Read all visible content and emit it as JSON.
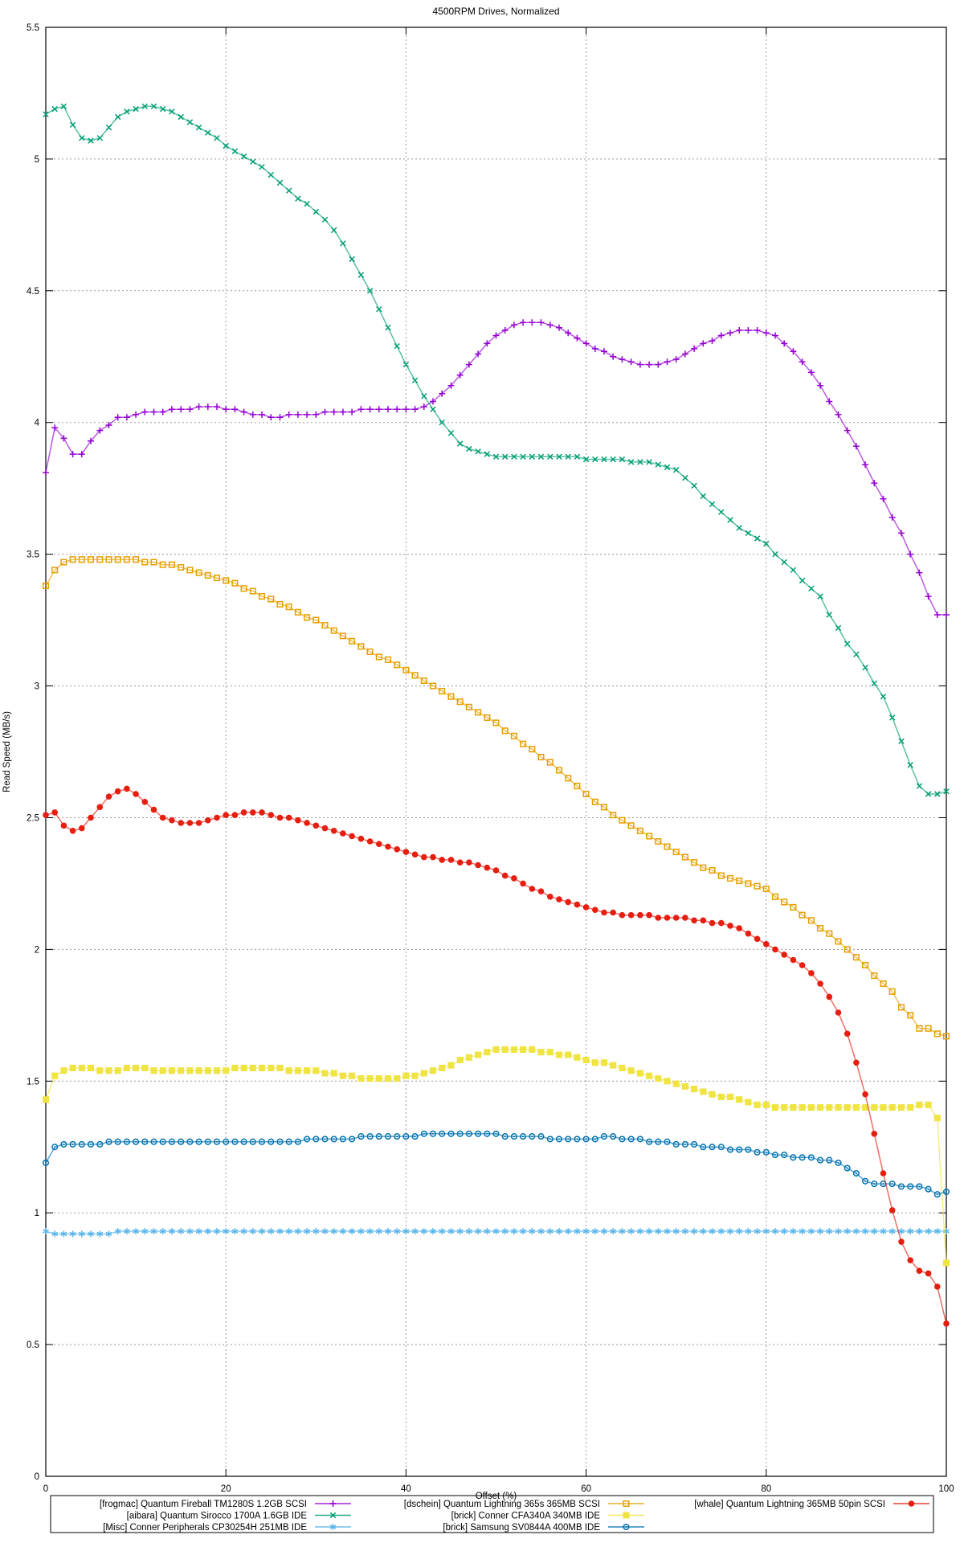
{
  "page": {
    "background": "#ffffff",
    "axis_color": "#000000",
    "grid_color": "#9a9a9a"
  },
  "chart_data": {
    "type": "line",
    "title": "4500RPM Drives, Normalized",
    "xlabel": "Offset (%)",
    "ylabel": "Read Speed (MB/s)",
    "xlim": [
      0,
      100
    ],
    "ylim": [
      0,
      5.5
    ],
    "xticks": [
      0,
      20,
      40,
      60,
      80,
      100
    ],
    "yticks": [
      0,
      0.5,
      1,
      1.5,
      2,
      2.5,
      3,
      3.5,
      4,
      4.5,
      5,
      5.5
    ],
    "grid": true,
    "legend_position": "bottom-outside",
    "legend_columns": 3,
    "x_start": 0,
    "x_step": 1,
    "series": [
      {
        "key": "frogmac-quantum-fireball",
        "name": "[frogmac] Quantum Fireball TM1280S 1.2GB SCSI",
        "color": "#9400d3",
        "marker": "plus",
        "values": [
          3.81,
          3.98,
          3.94,
          3.88,
          3.88,
          3.93,
          3.97,
          3.99,
          4.02,
          4.02,
          4.03,
          4.04,
          4.04,
          4.04,
          4.05,
          4.05,
          4.05,
          4.06,
          4.06,
          4.06,
          4.05,
          4.05,
          4.04,
          4.03,
          4.03,
          4.02,
          4.02,
          4.03,
          4.03,
          4.03,
          4.03,
          4.04,
          4.04,
          4.04,
          4.04,
          4.05,
          4.05,
          4.05,
          4.05,
          4.05,
          4.05,
          4.05,
          4.06,
          4.08,
          4.11,
          4.14,
          4.18,
          4.22,
          4.26,
          4.3,
          4.33,
          4.35,
          4.37,
          4.38,
          4.38,
          4.38,
          4.37,
          4.36,
          4.34,
          4.32,
          4.3,
          4.28,
          4.27,
          4.25,
          4.24,
          4.23,
          4.22,
          4.22,
          4.22,
          4.23,
          4.24,
          4.26,
          4.28,
          4.3,
          4.31,
          4.33,
          4.34,
          4.35,
          4.35,
          4.35,
          4.34,
          4.33,
          4.3,
          4.27,
          4.23,
          4.19,
          4.14,
          4.08,
          4.03,
          3.97,
          3.91,
          3.84,
          3.77,
          3.71,
          3.64,
          3.58,
          3.5,
          3.43,
          3.34,
          3.27,
          3.27
        ]
      },
      {
        "key": "aibara-quantum-sirocco",
        "name": "[aibara] Quantum Sirocco 1700A 1.6GB IDE",
        "color": "#009e73",
        "marker": "cross",
        "values": [
          5.17,
          5.19,
          5.2,
          5.13,
          5.08,
          5.07,
          5.08,
          5.12,
          5.16,
          5.18,
          5.19,
          5.2,
          5.2,
          5.19,
          5.18,
          5.16,
          5.14,
          5.12,
          5.1,
          5.08,
          5.05,
          5.03,
          5.01,
          4.99,
          4.97,
          4.94,
          4.91,
          4.88,
          4.85,
          4.83,
          4.8,
          4.77,
          4.73,
          4.68,
          4.62,
          4.56,
          4.5,
          4.43,
          4.36,
          4.29,
          4.22,
          4.16,
          4.1,
          4.05,
          4.0,
          3.96,
          3.92,
          3.9,
          3.89,
          3.88,
          3.87,
          3.87,
          3.87,
          3.87,
          3.87,
          3.87,
          3.87,
          3.87,
          3.87,
          3.87,
          3.86,
          3.86,
          3.86,
          3.86,
          3.86,
          3.85,
          3.85,
          3.85,
          3.84,
          3.83,
          3.82,
          3.79,
          3.76,
          3.72,
          3.69,
          3.66,
          3.63,
          3.6,
          3.58,
          3.56,
          3.54,
          3.5,
          3.47,
          3.44,
          3.4,
          3.37,
          3.34,
          3.27,
          3.22,
          3.16,
          3.12,
          3.07,
          3.01,
          2.96,
          2.88,
          2.79,
          2.7,
          2.62,
          2.59,
          2.59,
          2.6
        ]
      },
      {
        "key": "misc-conner-cp30254h",
        "name": "[Misc] Conner Peripherals CP30254H 251MB IDE",
        "color": "#56b4e9",
        "marker": "asterisk",
        "values": [
          0.93,
          0.92,
          0.92,
          0.92,
          0.92,
          0.92,
          0.92,
          0.92,
          0.93,
          0.93,
          0.93,
          0.93,
          0.93,
          0.93,
          0.93,
          0.93,
          0.93,
          0.93,
          0.93,
          0.93,
          0.93,
          0.93,
          0.93,
          0.93,
          0.93,
          0.93,
          0.93,
          0.93,
          0.93,
          0.93,
          0.93,
          0.93,
          0.93,
          0.93,
          0.93,
          0.93,
          0.93,
          0.93,
          0.93,
          0.93,
          0.93,
          0.93,
          0.93,
          0.93,
          0.93,
          0.93,
          0.93,
          0.93,
          0.93,
          0.93,
          0.93,
          0.93,
          0.93,
          0.93,
          0.93,
          0.93,
          0.93,
          0.93,
          0.93,
          0.93,
          0.93,
          0.93,
          0.93,
          0.93,
          0.93,
          0.93,
          0.93,
          0.93,
          0.93,
          0.93,
          0.93,
          0.93,
          0.93,
          0.93,
          0.93,
          0.93,
          0.93,
          0.93,
          0.93,
          0.93,
          0.93,
          0.93,
          0.93,
          0.93,
          0.93,
          0.93,
          0.93,
          0.93,
          0.93,
          0.93,
          0.93,
          0.93,
          0.93,
          0.93,
          0.93,
          0.93,
          0.93,
          0.93,
          0.93,
          0.93,
          0.93
        ]
      },
      {
        "key": "dschein-quantum-lightning-365s",
        "name": "[dschein] Quantum Lightning 365s 365MB SCSI",
        "color": "#e69f00",
        "marker": "square-open",
        "values": [
          3.38,
          3.44,
          3.47,
          3.48,
          3.48,
          3.48,
          3.48,
          3.48,
          3.48,
          3.48,
          3.48,
          3.47,
          3.47,
          3.46,
          3.46,
          3.45,
          3.44,
          3.43,
          3.42,
          3.41,
          3.4,
          3.39,
          3.37,
          3.36,
          3.34,
          3.33,
          3.31,
          3.3,
          3.28,
          3.26,
          3.25,
          3.23,
          3.21,
          3.19,
          3.17,
          3.15,
          3.13,
          3.11,
          3.1,
          3.08,
          3.06,
          3.04,
          3.02,
          3.0,
          2.98,
          2.96,
          2.94,
          2.92,
          2.9,
          2.88,
          2.86,
          2.83,
          2.81,
          2.78,
          2.76,
          2.73,
          2.71,
          2.68,
          2.65,
          2.62,
          2.59,
          2.56,
          2.54,
          2.51,
          2.49,
          2.47,
          2.45,
          2.43,
          2.41,
          2.39,
          2.37,
          2.35,
          2.33,
          2.31,
          2.3,
          2.28,
          2.27,
          2.26,
          2.25,
          2.24,
          2.23,
          2.2,
          2.18,
          2.16,
          2.13,
          2.11,
          2.08,
          2.06,
          2.03,
          2.0,
          1.97,
          1.94,
          1.9,
          1.87,
          1.84,
          1.78,
          1.75,
          1.7,
          1.7,
          1.68,
          1.67
        ]
      },
      {
        "key": "brick-conner-cfa340a",
        "name": "[brick] Conner CFA340A 340MB IDE",
        "color": "#f0e442",
        "marker": "square-filled",
        "values": [
          1.43,
          1.52,
          1.54,
          1.55,
          1.55,
          1.55,
          1.54,
          1.54,
          1.54,
          1.55,
          1.55,
          1.55,
          1.54,
          1.54,
          1.54,
          1.54,
          1.54,
          1.54,
          1.54,
          1.54,
          1.54,
          1.55,
          1.55,
          1.55,
          1.55,
          1.55,
          1.55,
          1.54,
          1.54,
          1.54,
          1.54,
          1.53,
          1.53,
          1.52,
          1.52,
          1.51,
          1.51,
          1.51,
          1.51,
          1.51,
          1.52,
          1.52,
          1.53,
          1.54,
          1.55,
          1.56,
          1.58,
          1.59,
          1.6,
          1.61,
          1.62,
          1.62,
          1.62,
          1.62,
          1.62,
          1.61,
          1.61,
          1.6,
          1.6,
          1.59,
          1.58,
          1.57,
          1.57,
          1.56,
          1.55,
          1.54,
          1.53,
          1.52,
          1.51,
          1.5,
          1.49,
          1.48,
          1.47,
          1.46,
          1.45,
          1.44,
          1.44,
          1.43,
          1.42,
          1.41,
          1.41,
          1.4,
          1.4,
          1.4,
          1.4,
          1.4,
          1.4,
          1.4,
          1.4,
          1.4,
          1.4,
          1.4,
          1.4,
          1.4,
          1.4,
          1.4,
          1.4,
          1.41,
          1.41,
          1.36,
          0.81
        ]
      },
      {
        "key": "brick-samsung-sv0844a",
        "name": "[brick] Samsung SV0844A 400MB IDE",
        "color": "#0072b2",
        "marker": "circle-open",
        "values": [
          1.19,
          1.25,
          1.26,
          1.26,
          1.26,
          1.26,
          1.26,
          1.27,
          1.27,
          1.27,
          1.27,
          1.27,
          1.27,
          1.27,
          1.27,
          1.27,
          1.27,
          1.27,
          1.27,
          1.27,
          1.27,
          1.27,
          1.27,
          1.27,
          1.27,
          1.27,
          1.27,
          1.27,
          1.27,
          1.28,
          1.28,
          1.28,
          1.28,
          1.28,
          1.28,
          1.29,
          1.29,
          1.29,
          1.29,
          1.29,
          1.29,
          1.29,
          1.3,
          1.3,
          1.3,
          1.3,
          1.3,
          1.3,
          1.3,
          1.3,
          1.3,
          1.29,
          1.29,
          1.29,
          1.29,
          1.29,
          1.28,
          1.28,
          1.28,
          1.28,
          1.28,
          1.28,
          1.29,
          1.29,
          1.28,
          1.28,
          1.28,
          1.27,
          1.27,
          1.27,
          1.26,
          1.26,
          1.26,
          1.25,
          1.25,
          1.25,
          1.24,
          1.24,
          1.24,
          1.23,
          1.23,
          1.22,
          1.22,
          1.21,
          1.21,
          1.21,
          1.2,
          1.2,
          1.19,
          1.17,
          1.15,
          1.12,
          1.11,
          1.11,
          1.11,
          1.1,
          1.1,
          1.1,
          1.09,
          1.07,
          1.08
        ]
      },
      {
        "key": "whale-quantum-lightning-365mb",
        "name": "[whale] Quantum Lightning 365MB 50pin SCSI",
        "color": "#e51e10",
        "marker": "circle-filled",
        "values": [
          2.51,
          2.52,
          2.47,
          2.45,
          2.46,
          2.5,
          2.54,
          2.58,
          2.6,
          2.61,
          2.59,
          2.56,
          2.53,
          2.5,
          2.49,
          2.48,
          2.48,
          2.48,
          2.49,
          2.5,
          2.51,
          2.51,
          2.52,
          2.52,
          2.52,
          2.51,
          2.5,
          2.5,
          2.49,
          2.48,
          2.47,
          2.46,
          2.45,
          2.44,
          2.43,
          2.42,
          2.41,
          2.4,
          2.39,
          2.38,
          2.37,
          2.36,
          2.35,
          2.35,
          2.34,
          2.34,
          2.33,
          2.33,
          2.32,
          2.31,
          2.3,
          2.28,
          2.27,
          2.25,
          2.23,
          2.22,
          2.2,
          2.19,
          2.18,
          2.17,
          2.16,
          2.15,
          2.14,
          2.14,
          2.13,
          2.13,
          2.13,
          2.13,
          2.12,
          2.12,
          2.12,
          2.12,
          2.11,
          2.11,
          2.1,
          2.1,
          2.09,
          2.08,
          2.06,
          2.04,
          2.02,
          2.0,
          1.98,
          1.96,
          1.94,
          1.91,
          1.87,
          1.82,
          1.76,
          1.68,
          1.57,
          1.45,
          1.3,
          1.15,
          1.01,
          0.89,
          0.82,
          0.78,
          0.77,
          0.72,
          0.58
        ]
      }
    ]
  }
}
